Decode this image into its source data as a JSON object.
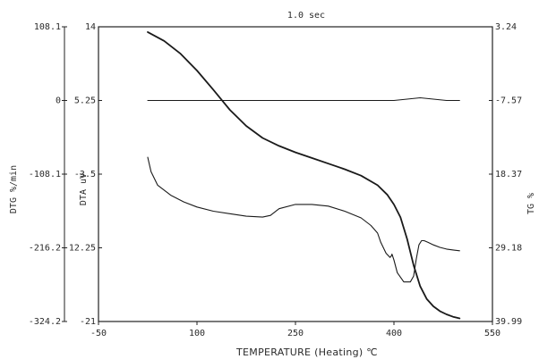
{
  "chart_data": {
    "type": "line",
    "title": "1.0 sec",
    "xlabel": "TEMPERATURE (Heating) ℃",
    "x_ticks": [
      "-50",
      "100",
      "250",
      "400",
      "550"
    ],
    "xlim": [
      -50,
      550
    ],
    "axes": {
      "dtg": {
        "label": "DTG %/min",
        "ticks": [
          "108.1",
          "0",
          "-108.1",
          "-216.2",
          "-324.2"
        ],
        "ylim": [
          -324.2,
          108.1
        ]
      },
      "dta": {
        "label": "DTA uV",
        "ticks": [
          "14",
          "5.25",
          "-3.5",
          "-12.25",
          "-21"
        ],
        "ylim": [
          -21,
          14
        ]
      },
      "tg": {
        "label": "TG %",
        "ticks": [
          "3.24",
          "-7.57",
          "18.37",
          "29.18",
          "39.99"
        ],
        "ylim": [
          39.99,
          3.24
        ]
      }
    },
    "series": [
      {
        "axis": "tg",
        "color": "#1a1a1a",
        "x": [
          25,
          50,
          75,
          100,
          125,
          150,
          175,
          200,
          225,
          250,
          275,
          300,
          325,
          350,
          375,
          390,
          400,
          410,
          420,
          430,
          440,
          450,
          460,
          470,
          480,
          490,
          500
        ],
        "y": [
          3.9,
          5.0,
          6.6,
          8.7,
          11.1,
          13.6,
          15.6,
          17.1,
          18.1,
          18.9,
          19.6,
          20.3,
          21.0,
          21.8,
          23.0,
          24.2,
          25.4,
          27.0,
          29.7,
          33.0,
          35.6,
          37.2,
          38.1,
          38.7,
          39.1,
          39.4,
          39.6
        ]
      },
      {
        "axis": "dtg",
        "color": "#1a1a1a",
        "x": [
          25,
          100,
          200,
          300,
          400,
          420,
          440,
          460,
          480,
          500
        ],
        "y": [
          0,
          0,
          0,
          0,
          0,
          2,
          4,
          2,
          0,
          0
        ]
      },
      {
        "axis": "dta",
        "color": "#1a1a1a",
        "x": [
          25,
          30,
          40,
          60,
          80,
          100,
          125,
          150,
          175,
          200,
          212,
          225,
          250,
          275,
          300,
          325,
          350,
          365,
          375,
          380,
          388,
          394,
          396,
          397,
          400,
          405,
          415,
          425,
          430,
          434,
          438,
          442,
          446,
          452,
          460,
          470,
          480,
          490,
          500
        ],
        "y": [
          -1.5,
          -3.2,
          -4.8,
          -6.0,
          -6.8,
          -7.4,
          -7.9,
          -8.2,
          -8.5,
          -8.6,
          -8.4,
          -7.6,
          -7.1,
          -7.1,
          -7.3,
          -7.9,
          -8.7,
          -9.6,
          -10.5,
          -11.6,
          -12.9,
          -13.4,
          -13.2,
          -13.0,
          -13.7,
          -15.2,
          -16.3,
          -16.3,
          -15.6,
          -13.6,
          -11.9,
          -11.4,
          -11.4,
          -11.6,
          -11.9,
          -12.2,
          -12.4,
          -12.5,
          -12.6
        ]
      }
    ],
    "grid": false,
    "legend": "none"
  }
}
